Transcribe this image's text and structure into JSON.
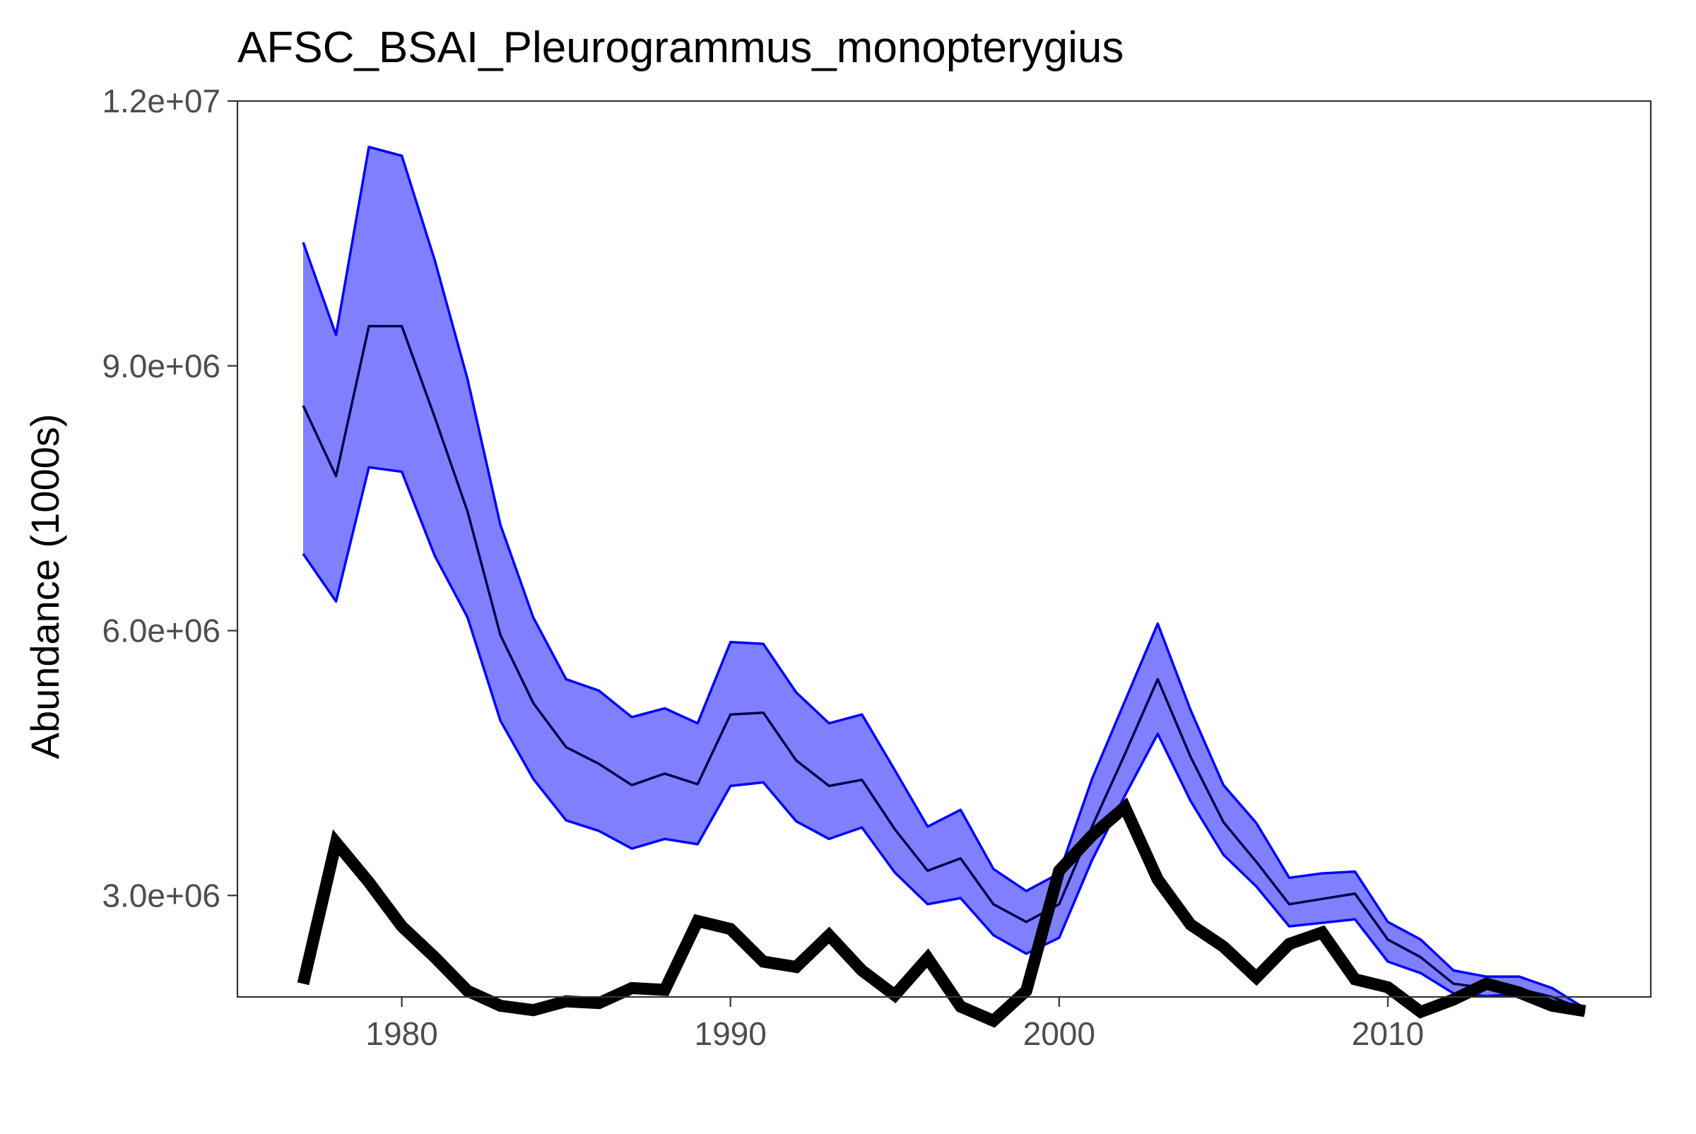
{
  "chart_data": {
    "type": "line",
    "title": "AFSC_BSAI_Pleurogrammus_monopterygius",
    "xlabel": "",
    "ylabel": "Abundance (1000s)",
    "xlim": [
      1975,
      2018
    ],
    "ylim": [
      1850000,
      12000000
    ],
    "x_ticks": [
      1980,
      1990,
      2000,
      2010
    ],
    "x_tick_labels": [
      "1980",
      "1990",
      "2000",
      "2010"
    ],
    "y_ticks": [
      3000000,
      6000000,
      9000000,
      12000000
    ],
    "y_tick_labels": [
      "3.0e+06",
      "6.0e+06",
      "9.0e+06",
      "1.2e+07"
    ],
    "grid": false,
    "legend": "none",
    "colors": {
      "band_fill": "#8080ff",
      "band_edge": "#0000ff",
      "median": "#00004d",
      "observed": "#000000"
    },
    "x": [
      1977,
      1978,
      1979,
      1980,
      1981,
      1982,
      1983,
      1984,
      1985,
      1986,
      1987,
      1988,
      1989,
      1990,
      1991,
      1992,
      1993,
      1994,
      1995,
      1996,
      1997,
      1998,
      1999,
      2000,
      2001,
      2002,
      2003,
      2004,
      2005,
      2006,
      2007,
      2008,
      2009,
      2010,
      2011,
      2012,
      2013,
      2014,
      2015,
      2016
    ],
    "series": [
      {
        "role": "upper",
        "values": [
          10400000,
          9350000,
          11480000,
          11380000,
          10200000,
          8850000,
          7200000,
          6150000,
          5450000,
          5320000,
          5020000,
          5120000,
          4950000,
          5870000,
          5850000,
          5300000,
          4950000,
          5050000,
          4420000,
          3780000,
          3970000,
          3300000,
          3050000,
          3250000,
          4320000,
          5200000,
          6080000,
          5100000,
          4250000,
          3820000,
          3200000,
          3250000,
          3270000,
          2700000,
          2500000,
          2150000,
          2080000,
          2080000,
          1950000,
          1720000
        ]
      },
      {
        "role": "median",
        "values": [
          8550000,
          7750000,
          9450000,
          9450000,
          8420000,
          7350000,
          5950000,
          5180000,
          4680000,
          4490000,
          4250000,
          4380000,
          4260000,
          5050000,
          5070000,
          4530000,
          4240000,
          4310000,
          3750000,
          3280000,
          3420000,
          2900000,
          2700000,
          2900000,
          3780000,
          4600000,
          5450000,
          4570000,
          3830000,
          3380000,
          2900000,
          2960000,
          3020000,
          2500000,
          2300000,
          2000000,
          1950000,
          1940000,
          1850000,
          1700000
        ]
      },
      {
        "role": "lower",
        "values": [
          6870000,
          6330000,
          7850000,
          7800000,
          6850000,
          6150000,
          4980000,
          4320000,
          3850000,
          3730000,
          3530000,
          3640000,
          3580000,
          4240000,
          4280000,
          3840000,
          3640000,
          3770000,
          3260000,
          2900000,
          2970000,
          2550000,
          2340000,
          2520000,
          3400000,
          4130000,
          4830000,
          4070000,
          3460000,
          3100000,
          2650000,
          2690000,
          2730000,
          2250000,
          2120000,
          1890000,
          1860000,
          1880000,
          1790000,
          1670000
        ]
      },
      {
        "role": "observed",
        "values": [
          2000000,
          3600000,
          3150000,
          2650000,
          2300000,
          1920000,
          1750000,
          1700000,
          1800000,
          1780000,
          1950000,
          1930000,
          2710000,
          2620000,
          2250000,
          2190000,
          2550000,
          2150000,
          1870000,
          2290000,
          1740000,
          1580000,
          1920000,
          3280000,
          3680000,
          4000000,
          3180000,
          2670000,
          2420000,
          2070000,
          2450000,
          2580000,
          2050000,
          1960000,
          1680000,
          1820000,
          2000000,
          1900000,
          1750000,
          1690000
        ]
      }
    ]
  }
}
